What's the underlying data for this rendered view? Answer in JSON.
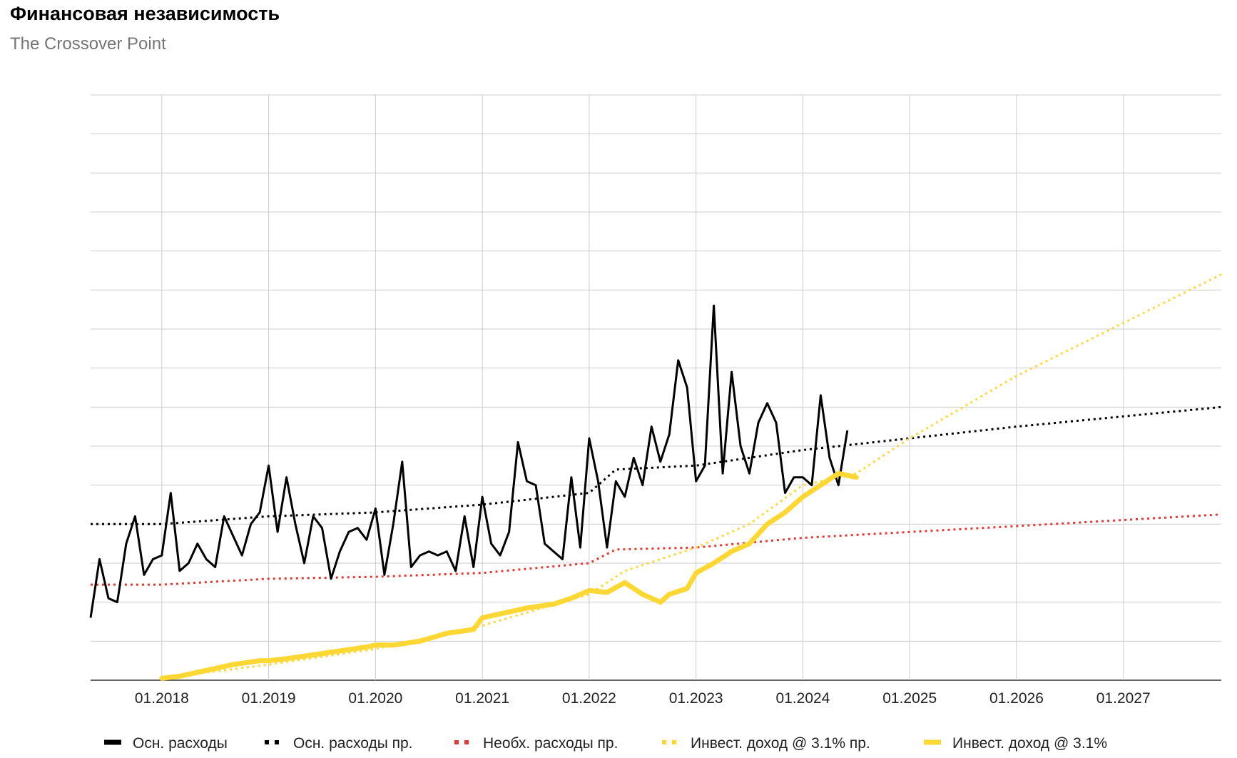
{
  "chart_data": {
    "type": "line",
    "title": "Финансовая независимость",
    "subtitle": "The Crossover Point",
    "x_tick_labels": [
      "01.2018",
      "01.2019",
      "01.2020",
      "01.2021",
      "01.2022",
      "01.2023",
      "01.2024",
      "01.2025",
      "01.2026",
      "01.2027"
    ],
    "xlim": [
      "2017-05",
      "2027-12"
    ],
    "ylim": [
      0,
      15
    ],
    "y_gridlines": 15,
    "y_tick_labels_shown": false,
    "grid": true,
    "legend_position": "bottom",
    "series": [
      {
        "name": "Осн. расходы",
        "style": "solid",
        "color": "#000000",
        "x": [
          "2017-05",
          "2017-06",
          "2017-07",
          "2017-08",
          "2017-09",
          "2017-10",
          "2017-11",
          "2017-12",
          "2018-01",
          "2018-02",
          "2018-03",
          "2018-04",
          "2018-05",
          "2018-06",
          "2018-07",
          "2018-08",
          "2018-09",
          "2018-10",
          "2018-11",
          "2018-12",
          "2019-01",
          "2019-02",
          "2019-03",
          "2019-04",
          "2019-05",
          "2019-06",
          "2019-07",
          "2019-08",
          "2019-09",
          "2019-10",
          "2019-11",
          "2019-12",
          "2020-01",
          "2020-02",
          "2020-03",
          "2020-04",
          "2020-05",
          "2020-06",
          "2020-07",
          "2020-08",
          "2020-09",
          "2020-10",
          "2020-11",
          "2020-12",
          "2021-01",
          "2021-02",
          "2021-03",
          "2021-04",
          "2021-05",
          "2021-06",
          "2021-07",
          "2021-08",
          "2021-09",
          "2021-10",
          "2021-11",
          "2021-12",
          "2022-01",
          "2022-02",
          "2022-03",
          "2022-04",
          "2022-05",
          "2022-06",
          "2022-07",
          "2022-08",
          "2022-09",
          "2022-10",
          "2022-11",
          "2022-12",
          "2023-01",
          "2023-02",
          "2023-03",
          "2023-04",
          "2023-05",
          "2023-06",
          "2023-07",
          "2023-08",
          "2023-09",
          "2023-10",
          "2023-11",
          "2023-12",
          "2024-01",
          "2024-02",
          "2024-03",
          "2024-04",
          "2024-05",
          "2024-06",
          "2024-07"
        ],
        "y": [
          1.6,
          3.1,
          2.1,
          2.0,
          3.5,
          4.2,
          2.7,
          3.1,
          3.2,
          4.8,
          2.8,
          3.0,
          3.5,
          3.1,
          2.9,
          4.2,
          3.7,
          3.2,
          4.0,
          4.3,
          5.5,
          3.8,
          5.2,
          4.0,
          3.0,
          4.2,
          3.9,
          2.6,
          3.3,
          3.8,
          3.9,
          3.6,
          4.4,
          2.7,
          4.0,
          5.6,
          2.9,
          3.2,
          3.3,
          3.2,
          3.3,
          2.8,
          4.2,
          2.9,
          4.7,
          3.5,
          3.2,
          3.8,
          6.1,
          5.1,
          5.0,
          3.5,
          3.3,
          3.1,
          5.2,
          3.4,
          6.2,
          5.1,
          3.4,
          5.1,
          4.7,
          5.7,
          5.0,
          6.5,
          5.6,
          6.3,
          8.2,
          7.5,
          5.1,
          5.5,
          9.6,
          5.3,
          7.9,
          6.0,
          5.3,
          6.6,
          7.1,
          6.6,
          4.8,
          5.2,
          5.2,
          5.0,
          7.3,
          5.7,
          5.0,
          6.4,
          null
        ],
        "x_end": "2024-07"
      },
      {
        "name": "Осн. расходы пр.",
        "style": "dotted",
        "color": "#000000",
        "x": [
          "2017-05",
          "2018-01",
          "2019-01",
          "2020-01",
          "2021-01",
          "2022-01",
          "2022-04",
          "2023-01",
          "2024-01",
          "2025-01",
          "2026-01",
          "2027-12"
        ],
        "y": [
          4.0,
          4.0,
          4.2,
          4.3,
          4.5,
          4.8,
          5.4,
          5.5,
          5.9,
          6.2,
          6.5,
          7.0
        ]
      },
      {
        "name": "Необх. расходы пр.",
        "style": "dotted",
        "color": "#e53935",
        "x": [
          "2017-05",
          "2018-01",
          "2019-01",
          "2020-01",
          "2021-01",
          "2022-01",
          "2022-04",
          "2023-01",
          "2024-01",
          "2025-01",
          "2026-01",
          "2027-12"
        ],
        "y": [
          2.45,
          2.45,
          2.6,
          2.65,
          2.75,
          3.0,
          3.35,
          3.4,
          3.65,
          3.8,
          3.95,
          4.25
        ]
      },
      {
        "name": "Инвест. доход @ 3.1% пр.",
        "style": "dotted",
        "color": "#fdd835",
        "x": [
          "2018-01",
          "2019-01",
          "2020-01",
          "2021-01",
          "2022-01",
          "2022-05",
          "2023-01",
          "2023-07",
          "2024-01",
          "2024-07",
          "2025-01",
          "2026-01",
          "2027-12"
        ],
        "y": [
          0.05,
          0.4,
          0.8,
          1.4,
          2.2,
          2.8,
          3.4,
          4.0,
          5.0,
          5.3,
          6.2,
          7.8,
          10.4
        ]
      },
      {
        "name": "Инвест. доход @ 3.1%",
        "style": "solid-thick",
        "color": "#fdd835",
        "x": [
          "2018-01",
          "2018-03",
          "2018-06",
          "2018-09",
          "2018-12",
          "2019-01",
          "2019-03",
          "2019-06",
          "2019-09",
          "2019-12",
          "2020-01",
          "2020-03",
          "2020-06",
          "2020-09",
          "2020-12",
          "2021-01",
          "2021-03",
          "2021-06",
          "2021-09",
          "2021-11",
          "2022-01",
          "2022-03",
          "2022-05",
          "2022-07",
          "2022-09",
          "2022-10",
          "2022-12",
          "2023-01",
          "2023-03",
          "2023-05",
          "2023-07",
          "2023-09",
          "2023-11",
          "2024-01",
          "2024-03",
          "2024-05",
          "2024-07"
        ],
        "y": [
          0.05,
          0.1,
          0.25,
          0.4,
          0.5,
          0.5,
          0.55,
          0.65,
          0.75,
          0.85,
          0.9,
          0.9,
          1.0,
          1.2,
          1.3,
          1.6,
          1.7,
          1.85,
          1.95,
          2.1,
          2.3,
          2.25,
          2.5,
          2.2,
          2.0,
          2.2,
          2.35,
          2.75,
          3.0,
          3.3,
          3.5,
          4.0,
          4.3,
          4.7,
          5.0,
          5.3,
          5.2
        ]
      }
    ],
    "legend": [
      {
        "label": "Осн. расходы",
        "color": "#000000",
        "style": "solid"
      },
      {
        "label": "Осн. расходы пр.",
        "color": "#000000",
        "style": "dotted"
      },
      {
        "label": "Необх. расходы пр.",
        "color": "#e53935",
        "style": "dotted"
      },
      {
        "label": "Инвест. доход @ 3.1% пр.",
        "color": "#fdd835",
        "style": "dotted"
      },
      {
        "label": "Инвест. доход @ 3.1%",
        "color": "#fdd835",
        "style": "solid"
      }
    ]
  }
}
